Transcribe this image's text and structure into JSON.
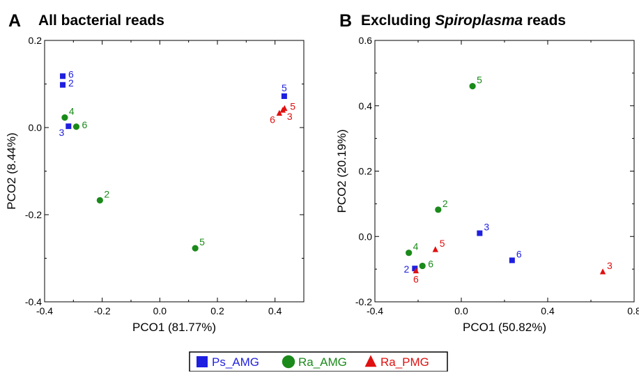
{
  "chart_data": [
    {
      "type": "scatter",
      "panel_letter": "A",
      "title_parts": [
        {
          "text": "All bacterial reads",
          "italic": false
        }
      ],
      "xlabel": "PCO1 (81.77%)",
      "ylabel": "PCO2 (8.44%)",
      "xlim": [
        -0.4,
        0.5
      ],
      "ylim": [
        -0.4,
        0.2
      ],
      "xticks": [
        "-0.4",
        "-0.2",
        "0.0",
        "0.2",
        "0.4"
      ],
      "xtick_values": [
        -0.4,
        -0.2,
        0.0,
        0.2,
        0.4
      ],
      "yticks": [
        "-0.4",
        "-0.2",
        "0.0",
        "0.2"
      ],
      "ytick_values": [
        -0.4,
        -0.2,
        0.0,
        0.2
      ],
      "grid": false,
      "series": [
        {
          "name": "Ps_AMG",
          "marker": "square",
          "color": "#1f1fe0",
          "points": [
            {
              "x": -0.337,
              "y": 0.118,
              "label": "6",
              "label_pos": "right"
            },
            {
              "x": -0.337,
              "y": 0.098,
              "label": "2",
              "label_pos": "right"
            },
            {
              "x": -0.317,
              "y": 0.003,
              "label": "3",
              "label_pos": "below-left"
            },
            {
              "x": 0.432,
              "y": 0.072,
              "label": "5",
              "label_pos": "above"
            }
          ]
        },
        {
          "name": "Ra_AMG",
          "marker": "circle",
          "color": "#1a8a1a",
          "points": [
            {
              "x": -0.33,
              "y": 0.023,
              "label": "4",
              "label_pos": "above-right"
            },
            {
              "x": -0.29,
              "y": 0.002,
              "label": "6",
              "label_pos": "right"
            },
            {
              "x": -0.208,
              "y": -0.167,
              "label": "2",
              "label_pos": "above-right"
            },
            {
              "x": 0.123,
              "y": -0.277,
              "label": "5",
              "label_pos": "above-right"
            }
          ]
        },
        {
          "name": "Ra_PMG",
          "marker": "triangle",
          "color": "#e01010",
          "points": [
            {
              "x": 0.433,
              "y": 0.044,
              "label": "5",
              "label_pos": "right"
            },
            {
              "x": 0.427,
              "y": 0.04,
              "label": "3",
              "label_pos": "below-right"
            },
            {
              "x": 0.415,
              "y": 0.033,
              "label": "6",
              "label_pos": "below-left"
            }
          ]
        }
      ]
    },
    {
      "type": "scatter",
      "panel_letter": "B",
      "title_parts": [
        {
          "text": "Excluding ",
          "italic": false
        },
        {
          "text": "Spiroplasma",
          "italic": true
        },
        {
          "text": " reads",
          "italic": false
        }
      ],
      "xlabel": "PCO1 (50.82%)",
      "ylabel": "PCO2 (20.19%)",
      "xlim": [
        -0.4,
        0.8
      ],
      "ylim": [
        -0.2,
        0.6
      ],
      "xticks": [
        "-0.4",
        "0.0",
        "0.4",
        "0.8"
      ],
      "xtick_values": [
        -0.4,
        0.0,
        0.4,
        0.8
      ],
      "yticks": [
        "-0.2",
        "0.0",
        "0.2",
        "0.4",
        "0.6"
      ],
      "ytick_values": [
        -0.2,
        0.0,
        0.2,
        0.4,
        0.6
      ],
      "grid": false,
      "series": [
        {
          "name": "Ps_AMG",
          "marker": "square",
          "color": "#1f1fe0",
          "points": [
            {
              "x": 0.085,
              "y": 0.01,
              "label": "3",
              "label_pos": "above-right"
            },
            {
              "x": 0.235,
              "y": -0.073,
              "label": "6",
              "label_pos": "above-right"
            },
            {
              "x": -0.215,
              "y": -0.098,
              "label": "2",
              "label_pos": "left"
            }
          ]
        },
        {
          "name": "Ra_AMG",
          "marker": "circle",
          "color": "#1a8a1a",
          "points": [
            {
              "x": 0.052,
              "y": 0.46,
              "label": "5",
              "label_pos": "above-right"
            },
            {
              "x": -0.107,
              "y": 0.082,
              "label": "2",
              "label_pos": "above-right"
            },
            {
              "x": -0.243,
              "y": -0.05,
              "label": "4",
              "label_pos": "above-right"
            },
            {
              "x": -0.18,
              "y": -0.09,
              "label": "6",
              "label_pos": "right"
            }
          ]
        },
        {
          "name": "Ra_PMG",
          "marker": "triangle",
          "color": "#e01010",
          "points": [
            {
              "x": -0.12,
              "y": -0.04,
              "label": "5",
              "label_pos": "above-right"
            },
            {
              "x": -0.21,
              "y": -0.105,
              "label": "6",
              "label_pos": "below"
            },
            {
              "x": 0.655,
              "y": -0.108,
              "label": "3",
              "label_pos": "above-right"
            }
          ]
        }
      ]
    }
  ],
  "legend": {
    "placement": "bottom-center",
    "entries": [
      {
        "label": "Ps_AMG",
        "marker": "square",
        "color": "#1f1fe0"
      },
      {
        "label": "Ra_AMG",
        "marker": "circle",
        "color": "#1a8a1a"
      },
      {
        "label": "Ra_PMG",
        "marker": "triangle",
        "color": "#e01010"
      }
    ]
  }
}
